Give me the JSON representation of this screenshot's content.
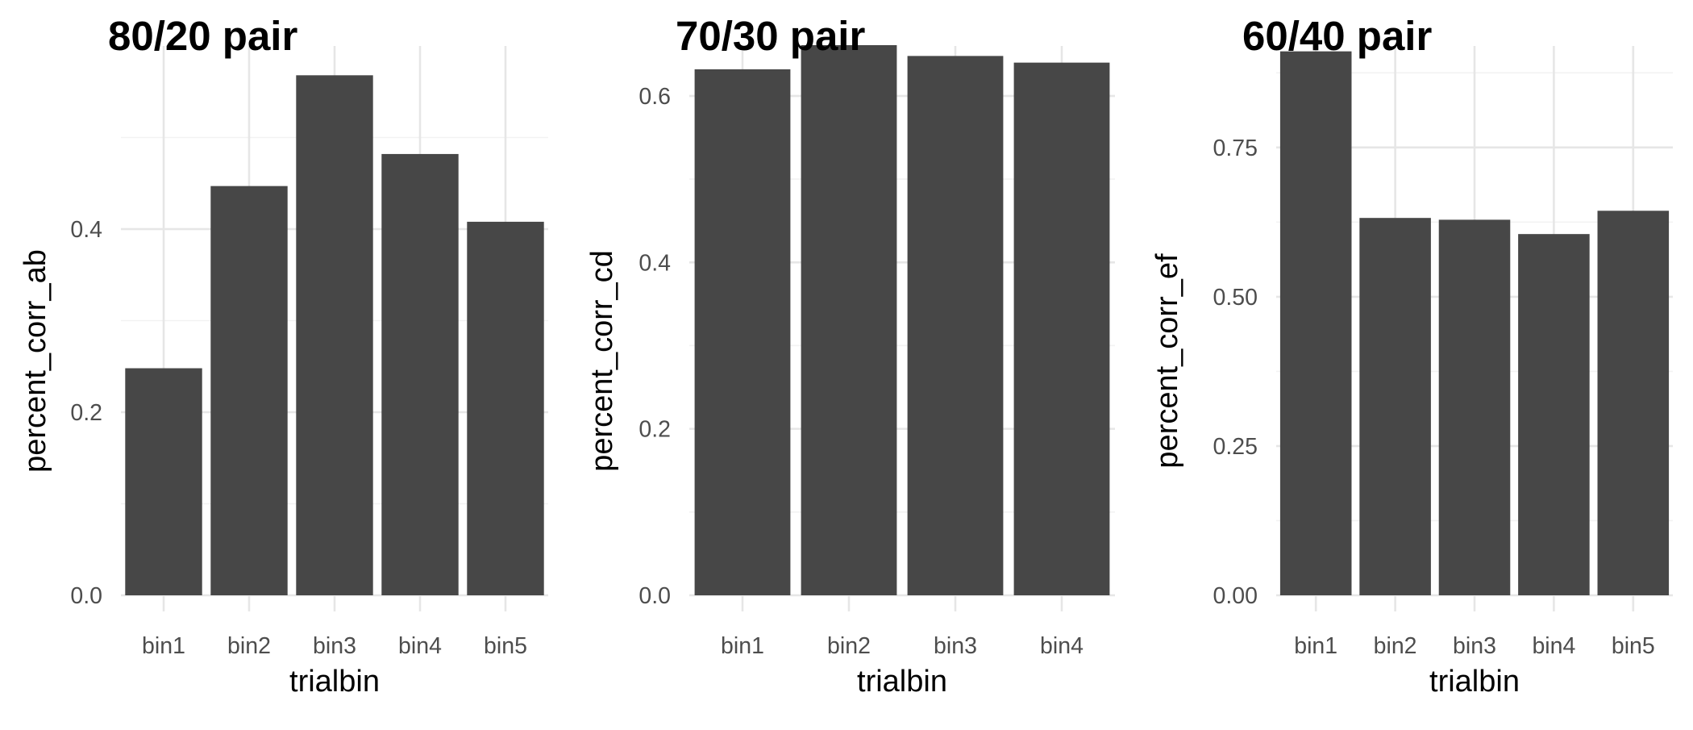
{
  "chart_data": [
    {
      "type": "bar",
      "title": "80/20 pair",
      "xlabel": "trialbin",
      "ylabel": "percent_corr_ab",
      "categories": [
        "bin1",
        "bin2",
        "bin3",
        "bin4",
        "bin5"
      ],
      "values": [
        0.248,
        0.447,
        0.568,
        0.482,
        0.408
      ],
      "ylim": [
        0,
        0.6
      ],
      "yticks": [
        0.0,
        0.2,
        0.4
      ],
      "ytick_labels": [
        "0.0",
        "0.2",
        "0.4"
      ],
      "grid": true,
      "bar_color": "#474747"
    },
    {
      "type": "bar",
      "title": "70/30 pair",
      "xlabel": "trialbin",
      "ylabel": "percent_corr_cd",
      "categories": [
        "bin1",
        "bin2",
        "bin3",
        "bin4"
      ],
      "values": [
        0.632,
        0.661,
        0.648,
        0.64
      ],
      "ylim": [
        0,
        0.66
      ],
      "yticks": [
        0.0,
        0.2,
        0.4,
        0.6
      ],
      "ytick_labels": [
        "0.0",
        "0.2",
        "0.4",
        "0.6"
      ],
      "grid": true,
      "bar_color": "#474747"
    },
    {
      "type": "bar",
      "title": "60/40 pair",
      "xlabel": "trialbin",
      "ylabel": "percent_corr_ef",
      "categories": [
        "bin1",
        "bin2",
        "bin3",
        "bin4",
        "bin5"
      ],
      "values": [
        0.911,
        0.632,
        0.629,
        0.605,
        0.644
      ],
      "ylim": [
        0,
        0.92
      ],
      "yticks": [
        0.0,
        0.25,
        0.5,
        0.75
      ],
      "ytick_labels": [
        "0.00",
        "0.25",
        "0.50",
        "0.75"
      ],
      "grid": true,
      "bar_color": "#474747"
    }
  ]
}
